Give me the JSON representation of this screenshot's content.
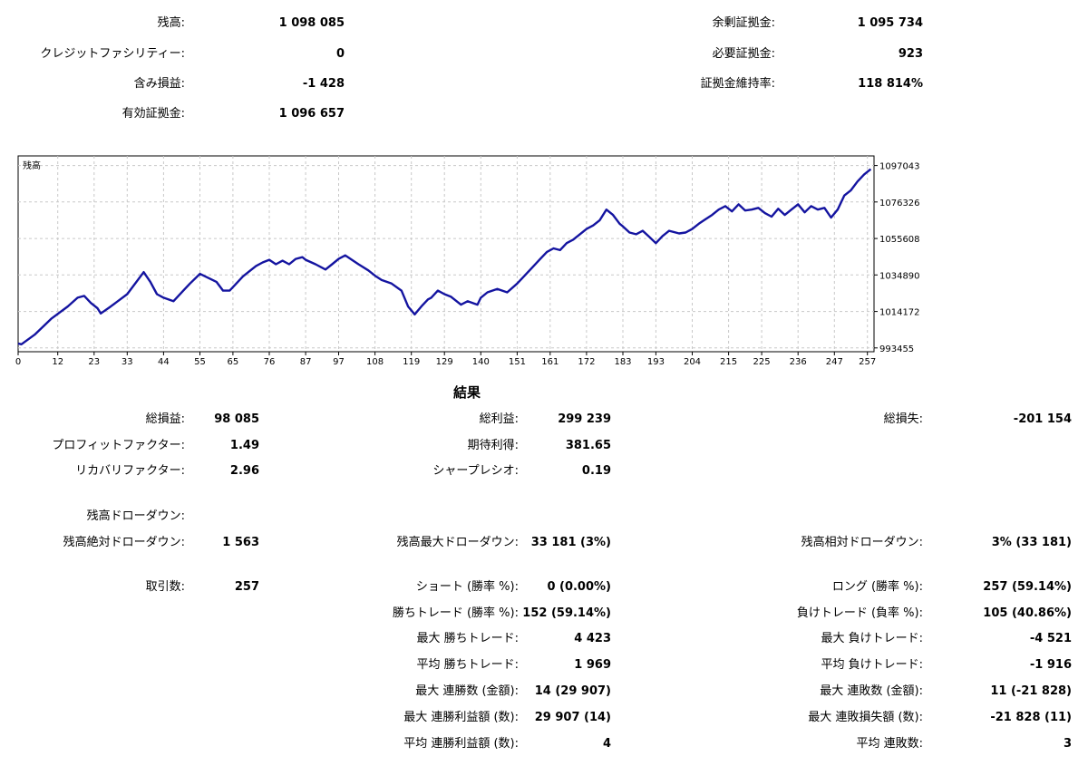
{
  "account": {
    "balance_label": "残高:",
    "balance_value": "1 098 085",
    "credit_label": "クレジットファシリティー:",
    "credit_value": "0",
    "floating_label": "含み損益:",
    "floating_value": "-1 428",
    "equity_label": "有効証拠金:",
    "equity_value": "1 096 657",
    "free_margin_label": "余剰証拠金:",
    "free_margin_value": "1 095 734",
    "margin_label": "必要証拠金:",
    "margin_value": "923",
    "margin_level_label": "証拠金維持率:",
    "margin_level_value": "118 814%"
  },
  "chart_data": {
    "type": "line",
    "title": "残高",
    "y_ticks": [
      993455,
      1014172,
      1034890,
      1055608,
      1076326,
      1097043
    ],
    "x_ticks": [
      0,
      12,
      23,
      33,
      44,
      55,
      65,
      76,
      87,
      97,
      108,
      119,
      129,
      140,
      151,
      161,
      172,
      183,
      193,
      204,
      215,
      225,
      236,
      247,
      257
    ],
    "ylim": [
      991300,
      1102500
    ],
    "xlim": [
      0,
      259
    ],
    "grid": true,
    "line_color": "#1414a0",
    "series": [
      {
        "x": [
          0,
          1,
          5,
          10,
          15,
          18,
          20,
          22,
          24,
          25,
          28,
          33,
          38,
          40,
          42,
          44,
          47,
          50,
          52,
          55,
          60,
          62,
          64,
          66,
          68,
          70,
          72,
          74,
          76,
          78,
          80,
          82,
          84,
          86,
          87,
          90,
          93,
          95,
          97,
          99,
          101,
          103,
          106,
          108,
          110,
          113,
          116,
          118,
          120,
          122,
          124,
          125,
          127,
          129,
          131,
          134,
          136,
          139,
          140,
          142,
          145,
          148,
          151,
          153,
          156,
          158,
          160,
          162,
          164,
          166,
          168,
          170,
          172,
          174,
          176,
          178,
          180,
          182,
          183,
          185,
          187,
          189,
          191,
          193,
          195,
          197,
          200,
          202,
          204,
          206,
          208,
          210,
          212,
          214,
          216,
          218,
          220,
          222,
          224,
          226,
          228,
          230,
          232,
          234,
          236,
          238,
          240,
          242,
          244,
          246,
          248,
          250,
          252,
          254,
          256,
          258
        ],
        "y": [
          996000,
          995500,
          1001000,
          1010000,
          1017000,
          1022000,
          1023000,
          1019000,
          1016000,
          1013000,
          1017000,
          1024000,
          1036500,
          1031000,
          1024000,
          1022000,
          1020000,
          1026000,
          1030000,
          1035500,
          1031000,
          1026000,
          1026000,
          1030000,
          1034000,
          1037000,
          1040000,
          1042000,
          1043500,
          1041000,
          1043000,
          1041000,
          1044000,
          1045000,
          1043500,
          1041000,
          1038000,
          1041000,
          1044000,
          1046000,
          1043500,
          1041000,
          1037500,
          1034500,
          1032000,
          1030000,
          1026000,
          1017000,
          1012500,
          1017000,
          1021000,
          1022000,
          1026000,
          1024000,
          1022500,
          1018000,
          1020000,
          1018000,
          1022000,
          1025000,
          1027000,
          1025000,
          1030000,
          1034000,
          1040000,
          1044000,
          1048000,
          1050000,
          1049000,
          1053000,
          1055000,
          1058000,
          1061000,
          1063000,
          1066000,
          1072000,
          1069000,
          1064000,
          1062500,
          1059000,
          1058000,
          1060000,
          1056500,
          1053000,
          1057000,
          1060000,
          1058500,
          1059000,
          1061000,
          1064000,
          1066500,
          1069000,
          1072000,
          1074000,
          1071000,
          1075000,
          1071500,
          1072000,
          1073000,
          1070000,
          1068000,
          1072500,
          1069000,
          1072000,
          1075000,
          1070500,
          1074000,
          1072000,
          1073000,
          1067500,
          1072000,
          1080000,
          1083000,
          1088000,
          1092000,
          1095000
        ]
      }
    ]
  },
  "results": {
    "title": "結果",
    "net_profit_label": "総損益:",
    "net_profit_value": "98 085",
    "gross_profit_label": "総利益:",
    "gross_profit_value": "299 239",
    "gross_loss_label": "総損失:",
    "gross_loss_value": "-201 154",
    "profit_factor_label": "プロフィットファクター:",
    "profit_factor_value": "1.49",
    "expected_payoff_label": "期待利得:",
    "expected_payoff_value": "381.65",
    "recovery_factor_label": "リカバリファクター:",
    "recovery_factor_value": "2.96",
    "sharpe_label": "シャープレシオ:",
    "sharpe_value": "0.19",
    "balance_dd_label": "残高ドローダウン:",
    "abs_dd_label": "残高絶対ドローダウン:",
    "abs_dd_value": "1 563",
    "max_dd_label": "残高最大ドローダウン:",
    "max_dd_value": "33 181 (3%)",
    "rel_dd_label": "残高相対ドローダウン:",
    "rel_dd_value": "3% (33 181)",
    "trades_label": "取引数:",
    "trades_value": "257",
    "short_label": "ショート (勝率 %):",
    "short_value": "0 (0.00%)",
    "long_label": "ロング (勝率 %):",
    "long_value": "257 (59.14%)",
    "profit_trades_label": "勝ちトレード (勝率 %):",
    "profit_trades_value": "152 (59.14%)",
    "loss_trades_label": "負けトレード (負率 %):",
    "loss_trades_value": "105 (40.86%)",
    "largest_profit_label": "最大 勝ちトレード:",
    "largest_profit_value": "4 423",
    "largest_loss_label": "最大 負けトレード:",
    "largest_loss_value": "-4 521",
    "avg_profit_label": "平均 勝ちトレード:",
    "avg_profit_value": "1 969",
    "avg_loss_label": "平均 負けトレード:",
    "avg_loss_value": "-1 916",
    "max_consec_wins_label": "最大 連勝数 (金額):",
    "max_consec_wins_value": "14 (29 907)",
    "max_consec_losses_label": "最大 連敗数 (金額):",
    "max_consec_losses_value": "11 (-21 828)",
    "max_consec_profit_label": "最大 連勝利益額 (数):",
    "max_consec_profit_value": "29 907 (14)",
    "max_consec_loss_label": "最大 連敗損失額 (数):",
    "max_consec_loss_value": "-21 828 (11)",
    "avg_consec_wins_label": "平均 連勝利益額 (数):",
    "avg_consec_wins_value": "4",
    "avg_consec_losses_label": "平均 連敗数:",
    "avg_consec_losses_value": "3"
  }
}
